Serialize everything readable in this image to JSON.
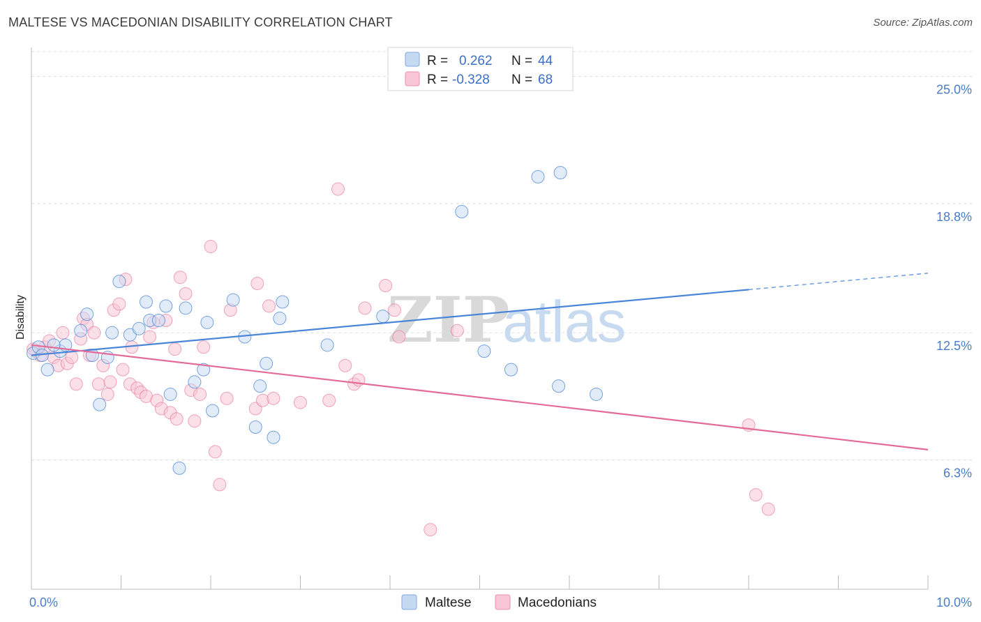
{
  "header": {
    "title": "MALTESE VS MACEDONIAN DISABILITY CORRELATION CHART",
    "source": "Source: ZipAtlas.com"
  },
  "colors": {
    "maltese": "#4a86d8",
    "maltese_fill": "#c5d9f3",
    "macedonian": "#e46b98",
    "macedonian_fill": "#f8c6d6",
    "tick_text": "#4a7cc9",
    "grid": "#dcdcdc"
  },
  "chart_data": {
    "type": "scatter",
    "title": "MALTESE VS MACEDONIAN DISABILITY CORRELATION CHART",
    "ylabel": "Disability",
    "xlabel": "",
    "xlim": [
      0,
      10
    ],
    "ylim": [
      0,
      26.2
    ],
    "y_ticks": [
      {
        "value": 25.0,
        "label": "25.0%"
      },
      {
        "value": 18.8,
        "label": "18.8%"
      },
      {
        "value": 12.5,
        "label": "12.5%"
      },
      {
        "value": 6.3,
        "label": "6.3%"
      }
    ],
    "x_tick_labels": {
      "left": "0.0%",
      "right": "10.0%"
    },
    "grid": true,
    "watermark": {
      "zip": "ZIP",
      "atlas": "atlas"
    },
    "legend": {
      "placement": "top-center",
      "rows": [
        {
          "r_label": "R =",
          "r_value": "0.262",
          "n_label": "N =",
          "n_value": "44"
        },
        {
          "r_label": "R =",
          "r_value": "-0.328",
          "n_label": "N =",
          "n_value": "68"
        }
      ]
    },
    "series": [
      {
        "name": "Maltese",
        "trend": {
          "x0": 0.0,
          "y0": 11.4,
          "x1": 8.0,
          "y1": 14.6,
          "dash_to_x": 10.0,
          "dash_to_y": 15.4
        },
        "points": [
          [
            0.02,
            11.5
          ],
          [
            0.08,
            11.8
          ],
          [
            0.12,
            11.4
          ],
          [
            0.18,
            10.7
          ],
          [
            0.32,
            11.6
          ],
          [
            0.38,
            11.9
          ],
          [
            0.55,
            12.6
          ],
          [
            0.62,
            13.4
          ],
          [
            0.68,
            11.4
          ],
          [
            0.76,
            9.0
          ],
          [
            0.85,
            11.3
          ],
          [
            0.9,
            12.5
          ],
          [
            0.98,
            15.0
          ],
          [
            1.1,
            12.4
          ],
          [
            1.2,
            12.7
          ],
          [
            1.28,
            14.0
          ],
          [
            1.32,
            13.1
          ],
          [
            1.42,
            13.1
          ],
          [
            1.5,
            13.8
          ],
          [
            1.55,
            9.5
          ],
          [
            1.65,
            5.9
          ],
          [
            1.72,
            13.7
          ],
          [
            1.82,
            10.1
          ],
          [
            1.92,
            10.7
          ],
          [
            1.96,
            13.0
          ],
          [
            2.02,
            8.7
          ],
          [
            2.25,
            14.1
          ],
          [
            2.38,
            12.3
          ],
          [
            2.5,
            7.9
          ],
          [
            2.55,
            9.9
          ],
          [
            2.62,
            11.0
          ],
          [
            2.7,
            7.4
          ],
          [
            2.77,
            13.2
          ],
          [
            2.8,
            14.0
          ],
          [
            3.3,
            11.9
          ],
          [
            3.92,
            13.3
          ],
          [
            4.8,
            18.4
          ],
          [
            5.05,
            11.6
          ],
          [
            5.35,
            10.7
          ],
          [
            5.65,
            20.1
          ],
          [
            5.88,
            9.9
          ],
          [
            5.9,
            20.3
          ],
          [
            6.3,
            9.5
          ],
          [
            0.25,
            11.9
          ]
        ]
      },
      {
        "name": "Macedonians",
        "trend": {
          "x0": 0.0,
          "y0": 11.9,
          "x1": 10.0,
          "y1": 6.8
        },
        "points": [
          [
            0.05,
            11.6
          ],
          [
            0.1,
            11.4
          ],
          [
            0.15,
            11.8
          ],
          [
            0.2,
            12.1
          ],
          [
            0.25,
            11.3
          ],
          [
            0.3,
            10.9
          ],
          [
            0.35,
            12.5
          ],
          [
            0.4,
            11.0
          ],
          [
            0.45,
            11.3
          ],
          [
            0.5,
            10.0
          ],
          [
            0.55,
            12.2
          ],
          [
            0.58,
            13.2
          ],
          [
            0.62,
            12.9
          ],
          [
            0.65,
            11.4
          ],
          [
            0.7,
            12.5
          ],
          [
            0.75,
            10.0
          ],
          [
            0.8,
            10.9
          ],
          [
            0.85,
            9.5
          ],
          [
            0.88,
            10.1
          ],
          [
            0.92,
            13.6
          ],
          [
            0.98,
            13.9
          ],
          [
            1.02,
            10.7
          ],
          [
            1.05,
            15.1
          ],
          [
            1.1,
            10.0
          ],
          [
            1.12,
            11.8
          ],
          [
            1.18,
            9.8
          ],
          [
            1.22,
            9.6
          ],
          [
            1.28,
            9.4
          ],
          [
            1.32,
            12.3
          ],
          [
            1.36,
            13.0
          ],
          [
            1.4,
            9.2
          ],
          [
            1.45,
            8.8
          ],
          [
            1.5,
            13.1
          ],
          [
            1.55,
            8.6
          ],
          [
            1.6,
            11.7
          ],
          [
            1.62,
            8.3
          ],
          [
            1.66,
            15.2
          ],
          [
            1.72,
            14.4
          ],
          [
            1.78,
            9.7
          ],
          [
            1.82,
            8.2
          ],
          [
            1.88,
            9.5
          ],
          [
            1.92,
            11.8
          ],
          [
            2.0,
            16.7
          ],
          [
            2.05,
            6.7
          ],
          [
            2.1,
            5.1
          ],
          [
            2.18,
            9.3
          ],
          [
            2.22,
            13.6
          ],
          [
            2.5,
            8.8
          ],
          [
            2.52,
            14.9
          ],
          [
            2.58,
            9.2
          ],
          [
            2.65,
            13.8
          ],
          [
            2.7,
            9.3
          ],
          [
            3.0,
            9.1
          ],
          [
            3.32,
            9.2
          ],
          [
            3.42,
            19.5
          ],
          [
            3.5,
            10.9
          ],
          [
            3.6,
            10.0
          ],
          [
            3.65,
            10.2
          ],
          [
            3.72,
            13.7
          ],
          [
            3.95,
            14.8
          ],
          [
            4.05,
            13.6
          ],
          [
            4.1,
            12.3
          ],
          [
            4.45,
            2.9
          ],
          [
            4.75,
            12.6
          ],
          [
            8.0,
            8.0
          ],
          [
            8.08,
            4.6
          ],
          [
            8.22,
            3.9
          ],
          [
            0.02,
            11.7
          ]
        ]
      }
    ]
  },
  "bottom_legend": [
    {
      "label": "Maltese"
    },
    {
      "label": "Macedonians"
    }
  ]
}
